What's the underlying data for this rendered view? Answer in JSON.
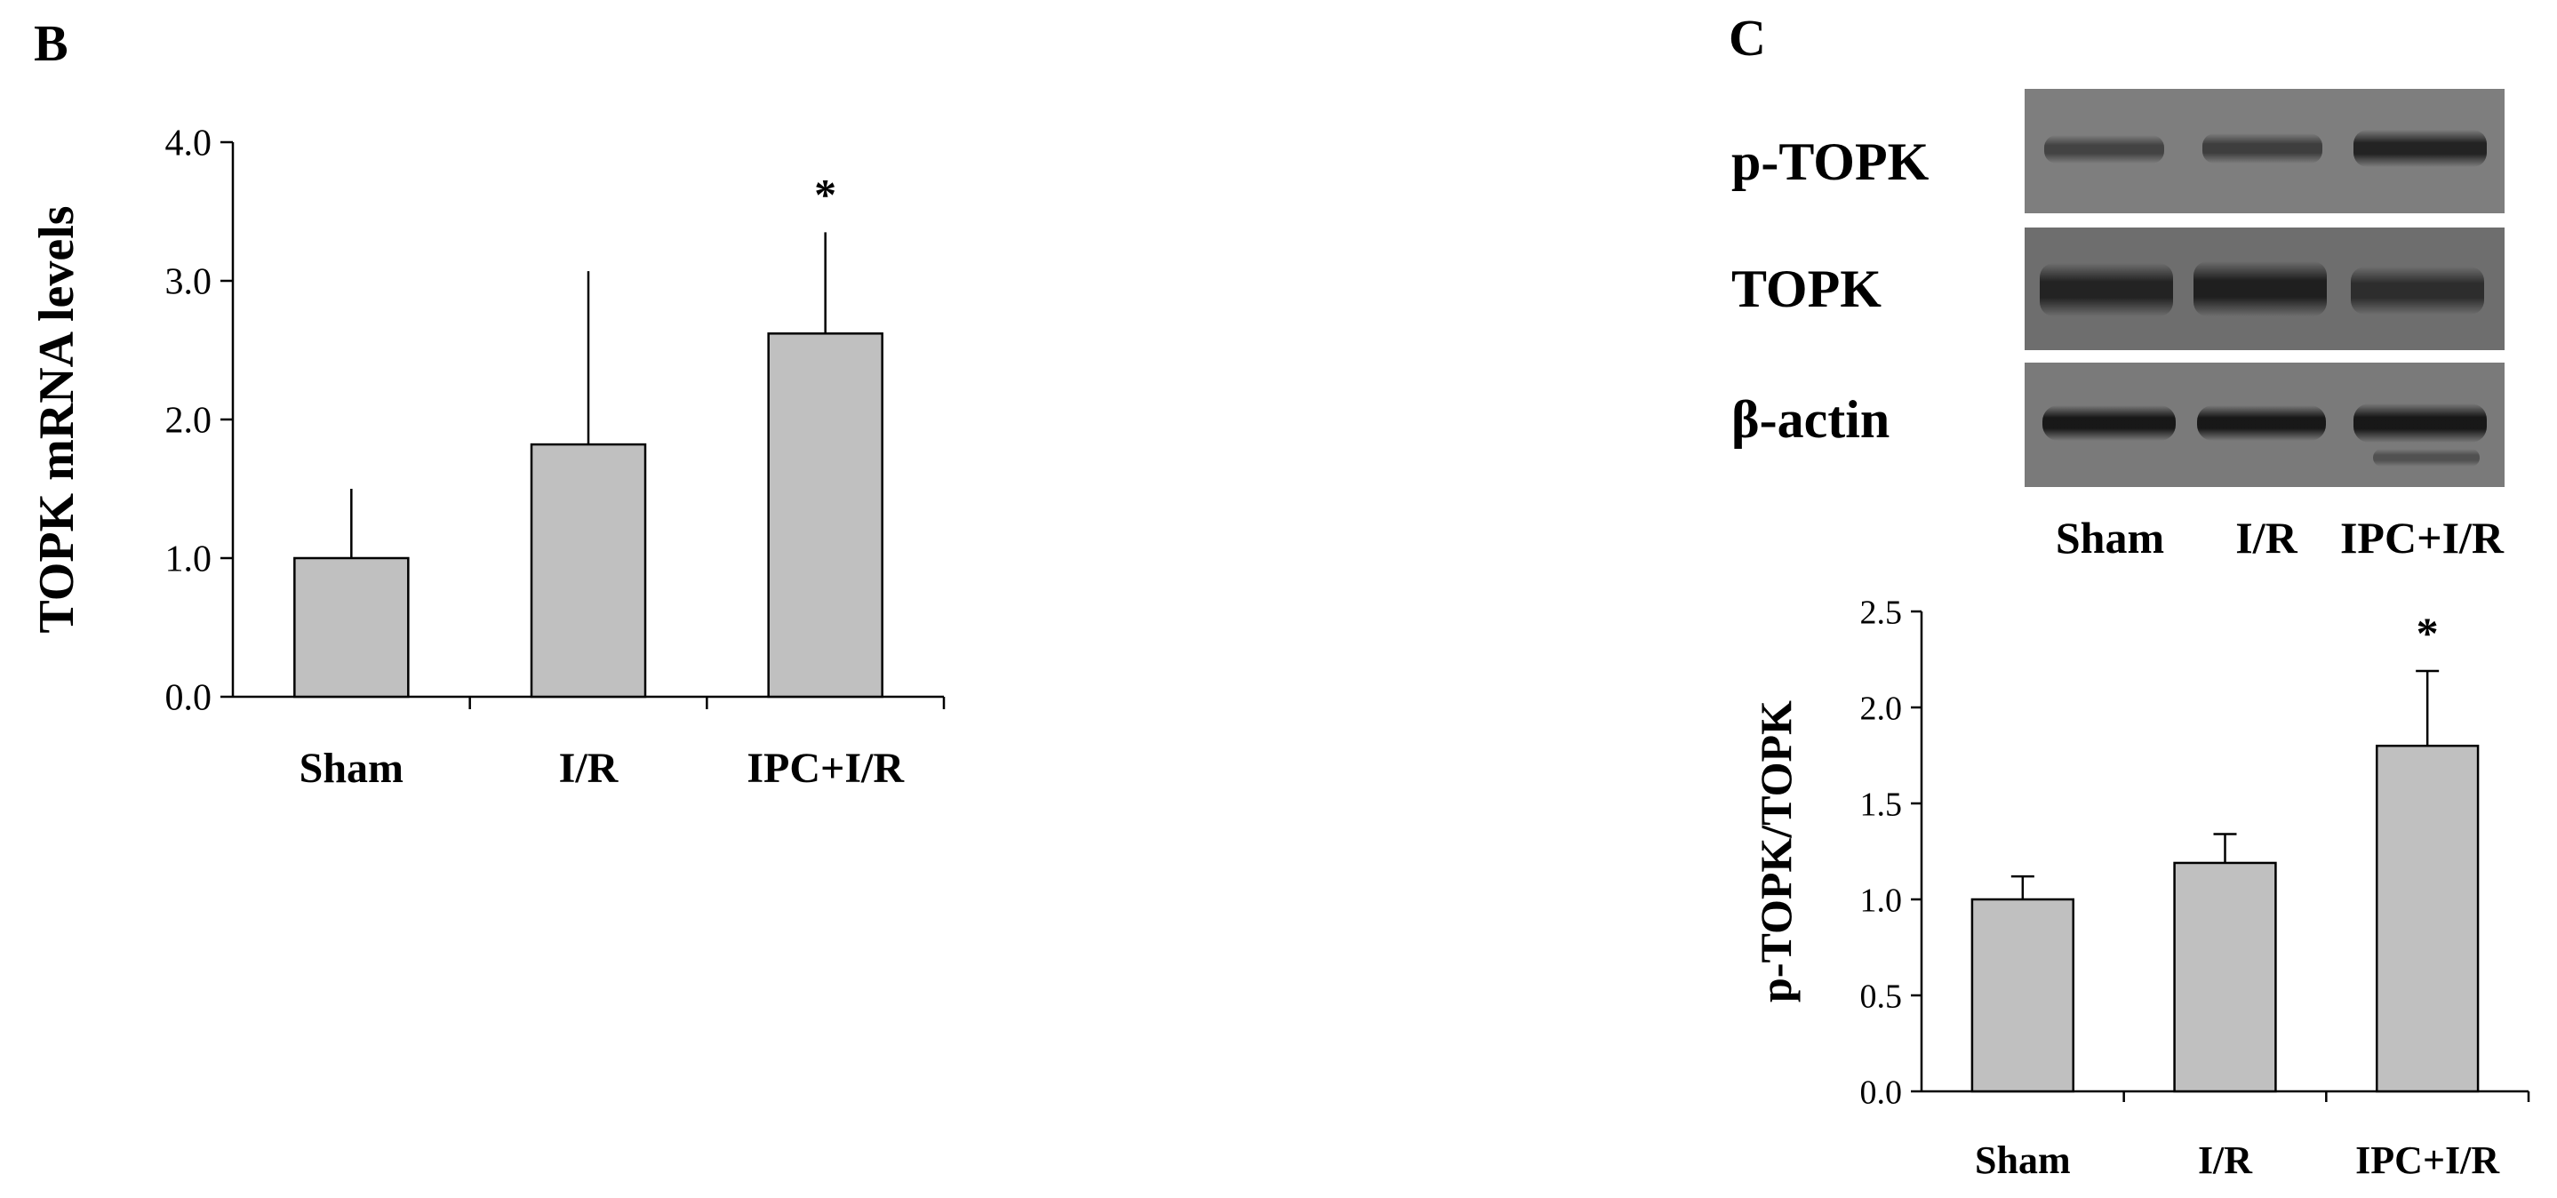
{
  "panels": {
    "b_label": "B",
    "c_label": "C"
  },
  "chart_data": [
    {
      "id": "B",
      "type": "bar",
      "title": "",
      "xlabel": "",
      "ylabel": "TOPK mRNA levels",
      "categories": [
        "Sham",
        "I/R",
        "IPC+I/R"
      ],
      "values": [
        1.0,
        1.82,
        2.62
      ],
      "error": [
        0.5,
        1.25,
        0.73
      ],
      "annotations": [
        "",
        "",
        "*"
      ],
      "ylim": [
        0,
        4.0
      ],
      "yticks": [
        "0.0",
        "1.0",
        "2.0",
        "3.0",
        "4.0"
      ],
      "grid": false,
      "bar_color": "#c0c0c0"
    },
    {
      "id": "C",
      "type": "bar",
      "title": "",
      "xlabel": "",
      "ylabel": "p-TOPK/TOPK",
      "categories": [
        "Sham",
        "I/R",
        "IPC+I/R"
      ],
      "values": [
        1.0,
        1.19,
        1.8
      ],
      "error": [
        0.12,
        0.15,
        0.39
      ],
      "annotations": [
        "",
        "",
        "*"
      ],
      "ylim": [
        0,
        2.5
      ],
      "yticks": [
        "0.0",
        "0.5",
        "1.0",
        "1.5",
        "2.0",
        "2.5"
      ],
      "grid": false,
      "bar_color": "#c0c0c0"
    }
  ],
  "blot": {
    "rows": [
      "p-TOPK",
      "TOPK",
      "β-actin"
    ],
    "lanes": [
      "Sham",
      "I/R",
      "IPC+I/R"
    ]
  }
}
